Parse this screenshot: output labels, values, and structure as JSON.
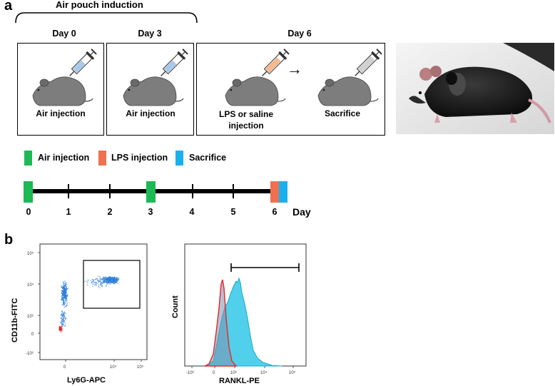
{
  "panel_a": {
    "letter": "a",
    "induction_label": "Air pouch induction",
    "day_titles": [
      "Day 0",
      "Day 3",
      "Day 6"
    ],
    "step_labels": [
      "Air injection",
      "Air injection",
      "LPS or saline\ninjection",
      "Sacrifice"
    ],
    "arrow": "→",
    "legend": [
      {
        "label": "Air injection",
        "color": "#1db954"
      },
      {
        "label": "LPS injection",
        "color": "#f07050"
      },
      {
        "label": "Sacrifice",
        "color": "#1ab0ee"
      }
    ],
    "timeline": {
      "ticks": [
        "0",
        "1",
        "2",
        "3",
        "4",
        "5",
        "6"
      ],
      "unit": "Day"
    }
  },
  "panel_b": {
    "letter": "b",
    "scatter": {
      "ylabel": "CD11b-FITC",
      "xlabel": "Ly6G-APC",
      "yticks": [
        "10⁵",
        "10⁴",
        "10³",
        "0",
        "-10³"
      ],
      "xticks": [
        "0",
        "10⁴",
        "10⁵"
      ]
    },
    "histogram": {
      "ylabel": "Count",
      "xlabel": "RANKL-PE",
      "xticks": [
        "-10³",
        "0",
        "10³",
        "10⁴",
        "10⁵"
      ],
      "colors": {
        "control": "#e03030",
        "rankl": "#33c8e8"
      }
    }
  }
}
